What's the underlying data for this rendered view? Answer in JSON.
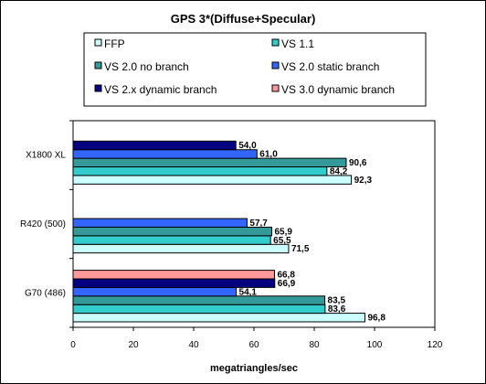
{
  "chart_data": {
    "type": "bar",
    "orientation": "horizontal",
    "title": "GPS 3*(Diffuse+Specular)",
    "xlabel": "megatriangles/sec",
    "ylabel": "",
    "xlim": [
      0,
      120
    ],
    "xticks": [
      "0",
      "20",
      "40",
      "60",
      "80",
      "100",
      "120"
    ],
    "grid": false,
    "legend_position": "top",
    "categories": [
      "X1800 XL",
      "R420 (500)",
      "G70 (486)"
    ],
    "series": [
      {
        "name": "FFP",
        "color": "#ccffff",
        "values": [
          92.3,
          71.5,
          96.8
        ],
        "labels": [
          "92,3",
          "71,5",
          "96,8"
        ]
      },
      {
        "name": "VS 1.1",
        "color": "#33cccc",
        "values": [
          84.2,
          65.5,
          83.6
        ],
        "labels": [
          "84,2",
          "65,5",
          "83,6"
        ]
      },
      {
        "name": "VS 2.0 no branch",
        "color": "#339999",
        "values": [
          90.6,
          65.9,
          83.5
        ],
        "labels": [
          "90,6",
          "65,9",
          "83,5"
        ]
      },
      {
        "name": "VS 2.0 static branch",
        "color": "#3366ff",
        "values": [
          61.0,
          57.7,
          54.1
        ],
        "labels": [
          "61,0",
          "57,7",
          "54,1"
        ]
      },
      {
        "name": "VS 2.x dynamic branch",
        "color": "#000080",
        "values": [
          54.0,
          null,
          66.9
        ],
        "labels": [
          "54,0",
          "",
          "66,9"
        ]
      },
      {
        "name": "VS 3.0 dynamic branch",
        "color": "#ff9999",
        "values": [
          null,
          null,
          66.8
        ],
        "labels": [
          "",
          "",
          "66,8"
        ]
      }
    ]
  }
}
